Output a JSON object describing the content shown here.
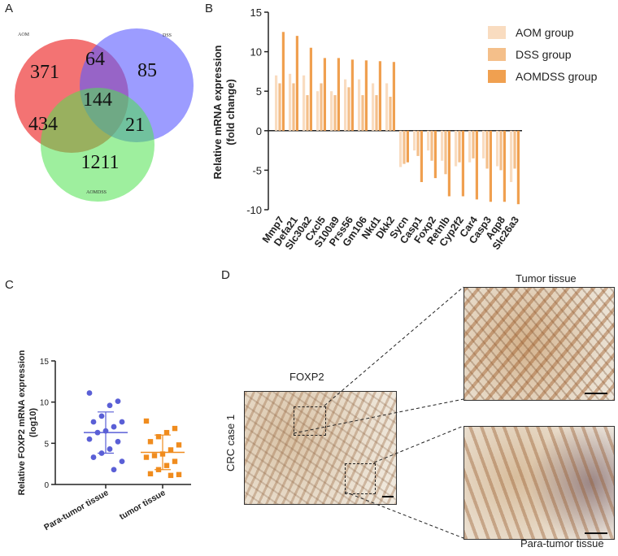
{
  "panels": {
    "a": "A",
    "b": "B",
    "c": "C",
    "d": "D"
  },
  "venn": {
    "set_labels": [
      "AOM",
      "DSS",
      "AOMDSS"
    ],
    "colors": [
      "#f05454",
      "#5a5aff",
      "#4fe24f"
    ],
    "regions": {
      "aom_only": "371",
      "aom_dss": "64",
      "dss_only": "85",
      "all_three": "144",
      "aom_aomdss": "434",
      "dss_aomdss": "21",
      "aomdss_only": "1211"
    }
  },
  "chart_data": [
    {
      "type": "bar",
      "panel": "B",
      "title": "",
      "ylabel": "Relative mRNA expression (fold change)",
      "xlabel": "",
      "ylim": [
        -10,
        15
      ],
      "yticks": [
        -10,
        -5,
        0,
        5,
        10,
        15
      ],
      "categories": [
        "Mmp7",
        "Defa21",
        "Slc30a2",
        "Cxcl5",
        "S100a9",
        "Prss56",
        "Gm106",
        "Nkd1",
        "Dkk2",
        "Sycn",
        "Casp1",
        "Foxp2",
        "Retnlb",
        "Cyp2f2",
        "Car4",
        "Casp3",
        "Aqp8",
        "Slc26a3"
      ],
      "series": [
        {
          "name": "AOM group",
          "color": "#f9dcc0",
          "values": [
            7.0,
            7.2,
            7.0,
            5.0,
            5.0,
            6.5,
            6.5,
            6.0,
            6.0,
            -4.6,
            -2.5,
            -2.5,
            -3.8,
            -4.5,
            -4.0,
            -3.5,
            -4.5,
            -6.5
          ]
        },
        {
          "name": "DSS group",
          "color": "#f4bf8a",
          "values": [
            6.0,
            6.0,
            4.5,
            6.0,
            4.5,
            5.5,
            4.5,
            4.5,
            4.3,
            -4.2,
            -3.2,
            -3.8,
            -5.5,
            -4.0,
            -3.5,
            -4.8,
            -5.0,
            -4.8
          ]
        },
        {
          "name": "AOMDSS group",
          "color": "#f0a050",
          "values": [
            12.5,
            12.0,
            10.5,
            9.2,
            9.2,
            9.0,
            8.9,
            8.8,
            8.7,
            -4.0,
            -6.5,
            -6.0,
            -8.3,
            -8.3,
            -8.7,
            -9.0,
            -9.0,
            -9.3
          ]
        }
      ]
    },
    {
      "type": "scatter",
      "panel": "C",
      "title": "",
      "ylabel": "Relative FOXP2 mRNA expression (log10)",
      "xlabel": "",
      "ylim": [
        0,
        15
      ],
      "yticks": [
        0,
        5,
        10,
        15
      ],
      "categories": [
        "Para-tumor tissue",
        "tumor tissue"
      ],
      "series": [
        {
          "name": "Para-tumor tissue",
          "color": "#5a5fd6",
          "marker": "circle",
          "mean": 6.3,
          "sd": 2.5,
          "values": [
            11.1,
            10.1,
            9.6,
            8.3,
            7.6,
            7.6,
            7.0,
            6.5,
            6.3,
            5.5,
            5.2,
            4.3,
            3.8,
            3.3,
            2.8,
            1.8
          ]
        },
        {
          "name": "tumor tissue",
          "color": "#f08c1e",
          "marker": "square",
          "mean": 3.9,
          "sd": 2.1,
          "values": [
            7.7,
            6.8,
            6.3,
            5.8,
            5.2,
            4.8,
            4.2,
            3.7,
            3.5,
            3.3,
            2.8,
            2.3,
            1.8,
            1.3,
            1.2,
            1.1
          ]
        }
      ]
    }
  ],
  "histology": {
    "stain_label": "FOXP2",
    "case_label": "CRC case 1",
    "tumor_label": "Tumor tissue",
    "para_label": "Para-tumor tissue"
  }
}
